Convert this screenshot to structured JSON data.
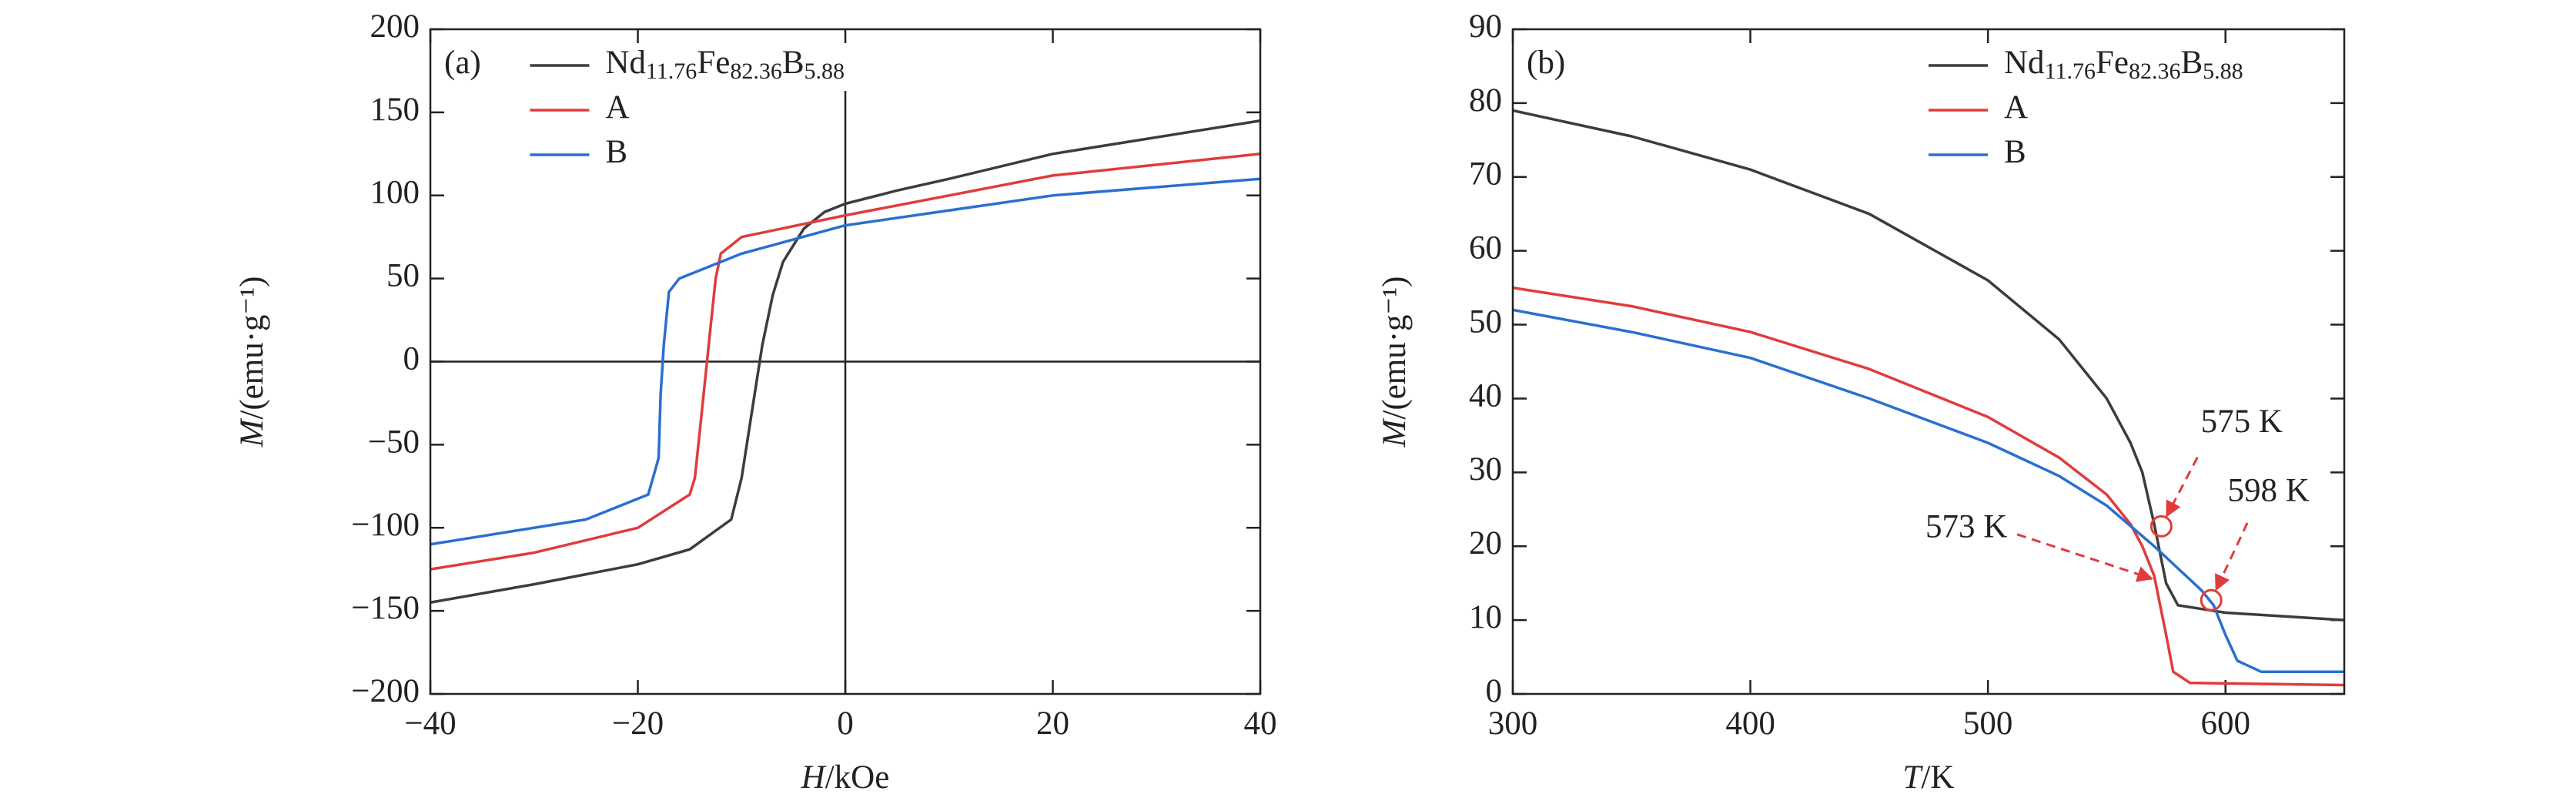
{
  "chart_data": [
    {
      "type": "line",
      "title": "(a)",
      "xlabel": "H/kOe",
      "ylabel": "M/(emu·g⁻¹)",
      "xlim": [
        -40,
        40
      ],
      "xticks": [
        {
          "value": -40,
          "label": "−40"
        },
        {
          "value": -20,
          "label": "−20"
        },
        0,
        20,
        40
      ],
      "ylim": [
        -200,
        200
      ],
      "yticks": [
        {
          "value": -200,
          "label": "−200"
        },
        {
          "value": -150,
          "label": "−150"
        },
        {
          "value": -100,
          "label": "−100"
        },
        {
          "value": -50,
          "label": "−50"
        },
        0,
        50,
        100,
        150,
        200
      ],
      "legend": "upper left",
      "grid": false,
      "series": [
        {
          "name": "Nd11.76Fe82.36B5.88",
          "color": "#3c3c3c",
          "x": [
            40,
            20,
            10,
            5,
            0,
            -2,
            -4,
            -6,
            -7,
            -8,
            -9,
            -10,
            -11,
            -15,
            -20,
            -30,
            -40,
            -30,
            -20,
            -15,
            -11,
            -10,
            -9,
            -8,
            -7,
            -6,
            -4,
            -2,
            0,
            5,
            10,
            20,
            40
          ],
          "values": [
            145,
            125,
            110,
            103,
            95,
            90,
            80,
            60,
            40,
            10,
            -30,
            -70,
            -95,
            -113,
            -122,
            -134,
            -145,
            -134,
            -122,
            -113,
            -95,
            -70,
            -30,
            10,
            40,
            60,
            80,
            90,
            95,
            103,
            110,
            125,
            145
          ]
        },
        {
          "name": "A",
          "color": "#e03c3c",
          "x": [
            40,
            20,
            10,
            0,
            -10,
            -12,
            -12.5,
            -13,
            -13.5,
            -14,
            -14.5,
            -15,
            -20,
            -30,
            -40,
            -30,
            -20,
            -15,
            -14.5,
            -14,
            -13.5,
            -13,
            -12.5,
            -12,
            -10,
            0,
            10,
            20,
            40
          ],
          "values": [
            125,
            112,
            100,
            88,
            75,
            65,
            50,
            20,
            -10,
            -40,
            -70,
            -80,
            -100,
            -115,
            -125,
            -115,
            -100,
            -80,
            -70,
            -40,
            -10,
            20,
            50,
            65,
            75,
            88,
            100,
            112,
            125
          ]
        },
        {
          "name": "B",
          "color": "#2a6fd0",
          "x": [
            40,
            20,
            0,
            -10,
            -16,
            -17,
            -17.5,
            -17.8,
            -18,
            -19,
            -25,
            -40,
            -25,
            -19,
            -18,
            -17.8,
            -17.5,
            -17,
            -16,
            -10,
            0,
            20,
            40
          ],
          "values": [
            110,
            100,
            82,
            65,
            50,
            42,
            10,
            -20,
            -58,
            -80,
            -95,
            -110,
            -95,
            -80,
            -58,
            -20,
            10,
            42,
            50,
            65,
            82,
            100,
            110
          ]
        }
      ]
    },
    {
      "type": "line",
      "title": "(b)",
      "xlabel": "T/K",
      "ylabel": "M/(emu·g⁻¹)",
      "xlim": [
        300,
        650
      ],
      "xticks": [
        300,
        400,
        500,
        600
      ],
      "ylim": [
        0,
        90
      ],
      "yticks": [
        0,
        10,
        20,
        30,
        40,
        50,
        60,
        70,
        80,
        90
      ],
      "legend": "upper right",
      "grid": false,
      "series": [
        {
          "name": "Nd11.76Fe82.36B5.88",
          "color": "#3c3c3c",
          "x": [
            300,
            350,
            400,
            450,
            500,
            530,
            550,
            560,
            565,
            570,
            575,
            580,
            590,
            600,
            650
          ],
          "values": [
            79,
            75.5,
            71,
            65,
            56,
            48,
            40,
            34,
            30,
            23,
            15,
            12,
            11.5,
            11,
            10
          ]
        },
        {
          "name": "A",
          "color": "#e03c3c",
          "x": [
            300,
            350,
            400,
            450,
            500,
            530,
            550,
            560,
            565,
            570,
            575,
            578,
            585,
            650
          ],
          "values": [
            55,
            52.5,
            49,
            44,
            37.5,
            32,
            27,
            23,
            20,
            16,
            8,
            3,
            1.5,
            1.2
          ]
        },
        {
          "name": "B",
          "color": "#2a6fd0",
          "x": [
            300,
            350,
            400,
            450,
            500,
            530,
            550,
            570,
            580,
            590,
            595,
            600,
            605,
            615,
            650
          ],
          "values": [
            52,
            49,
            45.5,
            40,
            34,
            29.5,
            25.5,
            20,
            17,
            14,
            12,
            8,
            4.5,
            3,
            3
          ]
        }
      ],
      "annotations": [
        {
          "text": "575 K",
          "x": 573,
          "y": 22.7,
          "marker": "circle"
        },
        {
          "text": "598 K",
          "x": 594,
          "y": 12.7,
          "marker": "circle"
        },
        {
          "text": "573 K",
          "x": 569,
          "y": 15.6
        }
      ]
    }
  ]
}
